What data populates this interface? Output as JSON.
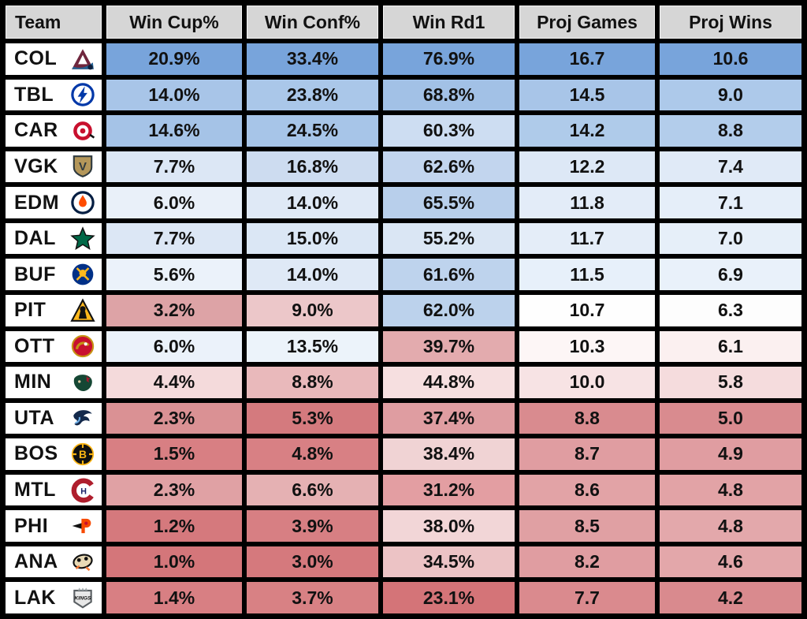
{
  "table": {
    "columns": [
      "Team",
      "Win Cup%",
      "Win Conf%",
      "Win Rd1",
      "Proj Games",
      "Proj Wins"
    ],
    "rows": [
      {
        "team": "COL",
        "logo": "avalanche-logo",
        "values": [
          "20.9%",
          "33.4%",
          "76.9%",
          "16.7",
          "10.6"
        ],
        "colors": [
          "#78a4db",
          "#78a4db",
          "#78a4db",
          "#78a4db",
          "#78a4db"
        ]
      },
      {
        "team": "TBL",
        "logo": "lightning-logo",
        "values": [
          "14.0%",
          "23.8%",
          "68.8%",
          "14.5",
          "9.0"
        ],
        "colors": [
          "#a8c5e8",
          "#aac7e9",
          "#a2c1e6",
          "#a8c5e8",
          "#adc9ea"
        ]
      },
      {
        "team": "CAR",
        "logo": "hurricanes-logo",
        "values": [
          "14.6%",
          "24.5%",
          "60.3%",
          "14.2",
          "8.8"
        ],
        "colors": [
          "#a5c3e7",
          "#a7c5e8",
          "#cdddf2",
          "#afcbea",
          "#b3cdeb"
        ]
      },
      {
        "team": "VGK",
        "logo": "golden-knights-logo",
        "values": [
          "7.7%",
          "16.8%",
          "62.6%",
          "12.2",
          "7.4"
        ],
        "colors": [
          "#dce7f5",
          "#cddcf0",
          "#c2d5ee",
          "#dde8f6",
          "#e0eaf7"
        ]
      },
      {
        "team": "EDM",
        "logo": "oilers-logo",
        "values": [
          "6.0%",
          "14.0%",
          "65.5%",
          "11.8",
          "7.1"
        ],
        "colors": [
          "#e9f0f9",
          "#dfe9f6",
          "#b8cfeb",
          "#e3ecf8",
          "#e5eef9"
        ]
      },
      {
        "team": "DAL",
        "logo": "stars-logo",
        "values": [
          "7.7%",
          "15.0%",
          "55.2%",
          "11.7",
          "7.0"
        ],
        "colors": [
          "#dce7f5",
          "#dbe7f5",
          "#dae6f4",
          "#e4edf8",
          "#e6eff9"
        ]
      },
      {
        "team": "BUF",
        "logo": "sabres-logo",
        "values": [
          "5.6%",
          "14.0%",
          "61.6%",
          "11.5",
          "6.9"
        ],
        "colors": [
          "#ebf2fa",
          "#dfe9f6",
          "#bed3ed",
          "#e7f0fa",
          "#e9f1fa"
        ]
      },
      {
        "team": "PIT",
        "logo": "penguins-logo",
        "values": [
          "3.2%",
          "9.0%",
          "62.0%",
          "10.7",
          "6.3"
        ],
        "colors": [
          "#dda3a6",
          "#ecc7c9",
          "#bcd2ec",
          "#fefefe",
          "#fdfdfd"
        ]
      },
      {
        "team": "OTT",
        "logo": "senators-logo",
        "values": [
          "6.0%",
          "13.5%",
          "39.7%",
          "10.3",
          "6.1"
        ],
        "colors": [
          "#ebf2fa",
          "#ecf3fa",
          "#e3abae",
          "#fdf6f6",
          "#fbf0f0"
        ]
      },
      {
        "team": "MIN",
        "logo": "wild-logo",
        "values": [
          "4.4%",
          "8.8%",
          "44.8%",
          "10.0",
          "5.8"
        ],
        "colors": [
          "#f4dadb",
          "#e9b9bb",
          "#f6dfe0",
          "#f7e3e4",
          "#f5dcdd"
        ]
      },
      {
        "team": "UTA",
        "logo": "mammoth-logo",
        "values": [
          "2.3%",
          "5.3%",
          "37.4%",
          "8.8",
          "5.0"
        ],
        "colors": [
          "#da9194",
          "#d47a7e",
          "#df9da1",
          "#d98b8f",
          "#d98b8f"
        ]
      },
      {
        "team": "BOS",
        "logo": "bruins-logo",
        "values": [
          "1.5%",
          "4.8%",
          "38.4%",
          "8.7",
          "4.9"
        ],
        "colors": [
          "#d87f83",
          "#d88084",
          "#f0d3d4",
          "#e09da1",
          "#e09da1"
        ]
      },
      {
        "team": "MTL",
        "logo": "canadiens-logo",
        "values": [
          "2.3%",
          "6.6%",
          "31.2%",
          "8.6",
          "4.8"
        ],
        "colors": [
          "#e0a1a4",
          "#e5b1b3",
          "#e39ea2",
          "#e2a3a6",
          "#e2a3a6"
        ]
      },
      {
        "team": "PHI",
        "logo": "flyers-logo",
        "values": [
          "1.2%",
          "3.9%",
          "38.0%",
          "8.5",
          "4.8"
        ],
        "colors": [
          "#d5797d",
          "#d77f83",
          "#f2d6d7",
          "#e0a0a3",
          "#e3a8ab"
        ]
      },
      {
        "team": "ANA",
        "logo": "ducks-logo",
        "values": [
          "1.0%",
          "3.0%",
          "34.5%",
          "8.2",
          "4.6"
        ],
        "colors": [
          "#d4767a",
          "#d5797d",
          "#ecc3c5",
          "#e09da1",
          "#e3a7aa"
        ]
      },
      {
        "team": "LAK",
        "logo": "kings-logo",
        "values": [
          "1.4%",
          "3.7%",
          "23.1%",
          "7.7",
          "4.2"
        ],
        "colors": [
          "#d87f83",
          "#d88184",
          "#d47478",
          "#da8a8e",
          "#d98a8e"
        ]
      }
    ]
  },
  "colors": {
    "grid": "#000000",
    "header_bg": "#d6d6d6",
    "team_cell_bg": "#ffffff",
    "text": "#111111",
    "heatmap_high": "#78a4db",
    "heatmap_mid": "#ffffff",
    "heatmap_low": "#d47478"
  },
  "chart_data": {
    "type": "table",
    "title": "",
    "columns": [
      "Team",
      "Win Cup%",
      "Win Conf%",
      "Win Rd1",
      "Proj Games",
      "Proj Wins"
    ],
    "rows": [
      [
        "COL",
        20.9,
        33.4,
        76.9,
        16.7,
        10.6
      ],
      [
        "TBL",
        14.0,
        23.8,
        68.8,
        14.5,
        9.0
      ],
      [
        "CAR",
        14.6,
        24.5,
        60.3,
        14.2,
        8.8
      ],
      [
        "VGK",
        7.7,
        16.8,
        62.6,
        12.2,
        7.4
      ],
      [
        "EDM",
        6.0,
        14.0,
        65.5,
        11.8,
        7.1
      ],
      [
        "DAL",
        7.7,
        15.0,
        55.2,
        11.7,
        7.0
      ],
      [
        "BUF",
        5.6,
        14.0,
        61.6,
        11.5,
        6.9
      ],
      [
        "PIT",
        3.2,
        9.0,
        62.0,
        10.7,
        6.3
      ],
      [
        "OTT",
        6.0,
        13.5,
        39.7,
        10.3,
        6.1
      ],
      [
        "MIN",
        4.4,
        8.8,
        44.8,
        10.0,
        5.8
      ],
      [
        "UTA",
        2.3,
        5.3,
        37.4,
        8.8,
        5.0
      ],
      [
        "BOS",
        1.5,
        4.8,
        38.4,
        8.7,
        4.9
      ],
      [
        "MTL",
        2.3,
        6.6,
        31.2,
        8.6,
        4.8
      ],
      [
        "PHI",
        1.2,
        3.9,
        38.0,
        8.5,
        4.8
      ],
      [
        "ANA",
        1.0,
        3.0,
        34.5,
        8.2,
        4.6
      ],
      [
        "LAK",
        1.4,
        3.7,
        23.1,
        7.7,
        4.2
      ]
    ],
    "layout_hints": {
      "style": "heatmap table, per-cell diverging red-white-blue shading",
      "grid": "thick black gridlines",
      "units": {
        "Win Cup%": "percent",
        "Win Conf%": "percent",
        "Win Rd1": "percent",
        "Proj Games": "count",
        "Proj Wins": "count"
      }
    }
  }
}
